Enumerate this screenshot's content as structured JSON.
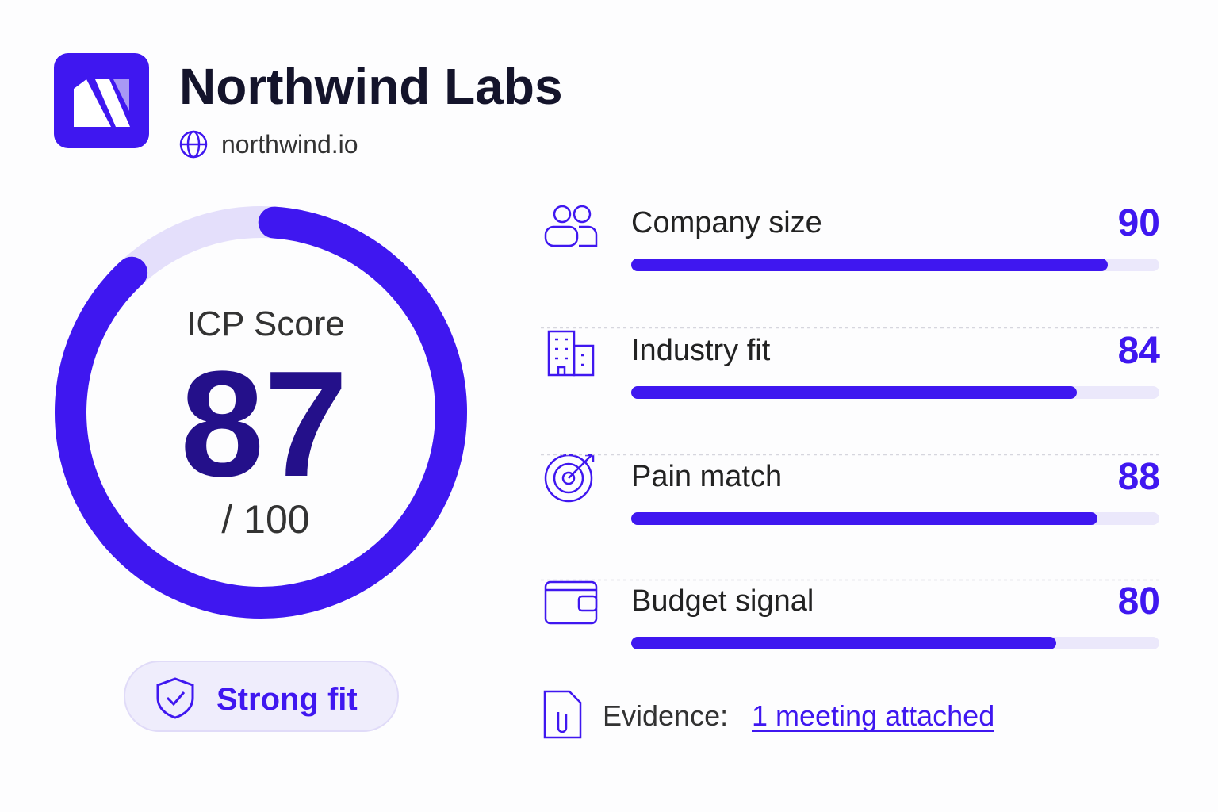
{
  "header": {
    "title": "Northwind Labs",
    "domain": "northwind.io"
  },
  "score": {
    "label": "ICP Score",
    "value": 87,
    "max": {
      "value": 100,
      "label": "/ 100"
    },
    "badge": "Strong fit"
  },
  "criteria": [
    {
      "name": "Company size",
      "value": 90
    },
    {
      "name": "Industry fit",
      "value": 84
    },
    {
      "name": "Pain match",
      "value": 88
    },
    {
      "name": "Budget signal",
      "value": 80
    }
  ],
  "evidence": {
    "label": "Evidence:",
    "link": "1 meeting attached"
  }
}
